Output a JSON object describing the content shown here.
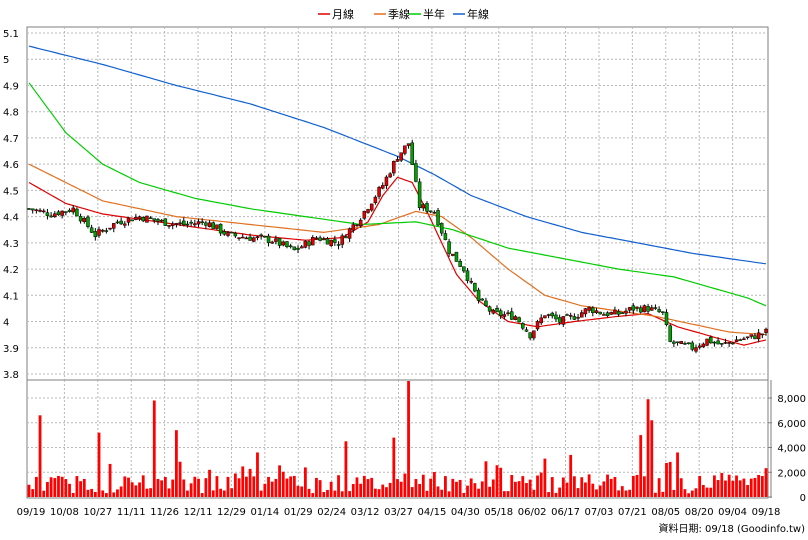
{
  "chart_data": {
    "type": "candlestick",
    "legend_position": "top-center",
    "grid": true,
    "legend": [
      {
        "name": "月線",
        "color": "#dd0000"
      },
      {
        "name": "季線",
        "color": "#e07020"
      },
      {
        "name": "半年",
        "color": "#00cc00"
      },
      {
        "name": "年線",
        "color": "#1060d0"
      }
    ],
    "price_axis": {
      "ylim": [
        3.8,
        5.1
      ],
      "ticks": [
        "5.1",
        "5",
        "4.9",
        "4.8",
        "4.7",
        "4.6",
        "4.5",
        "4.4",
        "4.3",
        "4.2",
        "4.1",
        "4",
        "3.9",
        "3.8"
      ]
    },
    "volume_axis": {
      "ylim": [
        0,
        8000
      ],
      "ticks": [
        "8,000",
        "6,000",
        "4,000",
        "2,000",
        "0"
      ]
    },
    "x_dates": [
      "09/19",
      "10/08",
      "10/27",
      "11/11",
      "11/26",
      "12/11",
      "12/29",
      "01/14",
      "01/29",
      "02/24",
      "03/12",
      "03/27",
      "04/15",
      "04/30",
      "05/18",
      "06/02",
      "06/17",
      "07/03",
      "07/21",
      "08/05",
      "08/20",
      "09/04",
      "09/18"
    ],
    "price_keypoints": [
      [
        0,
        4.43
      ],
      [
        6,
        4.41
      ],
      [
        12,
        4.43
      ],
      [
        18,
        4.33
      ],
      [
        24,
        4.38
      ],
      [
        30,
        4.4
      ],
      [
        36,
        4.38
      ],
      [
        42,
        4.37
      ],
      [
        48,
        4.38
      ],
      [
        54,
        4.33
      ],
      [
        60,
        4.32
      ],
      [
        66,
        4.31
      ],
      [
        72,
        4.27
      ],
      [
        78,
        4.32
      ],
      [
        84,
        4.3
      ],
      [
        90,
        4.4
      ],
      [
        96,
        4.52
      ],
      [
        100,
        4.63
      ],
      [
        103,
        4.68
      ],
      [
        106,
        4.44
      ],
      [
        110,
        4.42
      ],
      [
        114,
        4.27
      ],
      [
        118,
        4.2
      ],
      [
        122,
        4.08
      ],
      [
        126,
        4.03
      ],
      [
        132,
        4.02
      ],
      [
        136,
        3.95
      ],
      [
        140,
        4.03
      ],
      [
        144,
        4.0
      ],
      [
        148,
        4.02
      ],
      [
        152,
        4.05
      ],
      [
        156,
        4.03
      ],
      [
        160,
        4.03
      ],
      [
        164,
        4.05
      ],
      [
        168,
        4.05
      ],
      [
        172,
        4.03
      ],
      [
        174,
        3.92
      ],
      [
        180,
        3.9
      ],
      [
        184,
        3.93
      ],
      [
        188,
        3.91
      ],
      [
        192,
        3.93
      ],
      [
        196,
        3.94
      ],
      [
        200,
        3.96
      ]
    ],
    "ma_keypoints": {
      "月線": [
        [
          0,
          4.53
        ],
        [
          10,
          4.45
        ],
        [
          20,
          4.41
        ],
        [
          30,
          4.39
        ],
        [
          45,
          4.36
        ],
        [
          60,
          4.33
        ],
        [
          75,
          4.31
        ],
        [
          85,
          4.32
        ],
        [
          92,
          4.38
        ],
        [
          96,
          4.48
        ],
        [
          100,
          4.55
        ],
        [
          104,
          4.53
        ],
        [
          108,
          4.42
        ],
        [
          112,
          4.3
        ],
        [
          116,
          4.18
        ],
        [
          122,
          4.08
        ],
        [
          130,
          4.0
        ],
        [
          138,
          3.98
        ],
        [
          148,
          4.0
        ],
        [
          160,
          4.02
        ],
        [
          168,
          4.03
        ],
        [
          176,
          3.98
        ],
        [
          186,
          3.94
        ],
        [
          194,
          3.91
        ],
        [
          200,
          3.93
        ]
      ],
      "季線": [
        [
          0,
          4.6
        ],
        [
          20,
          4.46
        ],
        [
          40,
          4.4
        ],
        [
          60,
          4.37
        ],
        [
          80,
          4.34
        ],
        [
          95,
          4.37
        ],
        [
          105,
          4.42
        ],
        [
          112,
          4.4
        ],
        [
          120,
          4.32
        ],
        [
          130,
          4.2
        ],
        [
          140,
          4.1
        ],
        [
          150,
          4.06
        ],
        [
          160,
          4.04
        ],
        [
          170,
          4.02
        ],
        [
          180,
          3.99
        ],
        [
          190,
          3.96
        ],
        [
          200,
          3.95
        ]
      ],
      "半年": [
        [
          0,
          4.91
        ],
        [
          10,
          4.72
        ],
        [
          20,
          4.6
        ],
        [
          30,
          4.53
        ],
        [
          45,
          4.47
        ],
        [
          60,
          4.43
        ],
        [
          75,
          4.4
        ],
        [
          90,
          4.37
        ],
        [
          105,
          4.38
        ],
        [
          115,
          4.35
        ],
        [
          130,
          4.28
        ],
        [
          145,
          4.24
        ],
        [
          160,
          4.2
        ],
        [
          175,
          4.17
        ],
        [
          185,
          4.13
        ],
        [
          195,
          4.09
        ],
        [
          200,
          4.06
        ]
      ],
      "年線": [
        [
          0,
          5.05
        ],
        [
          20,
          4.98
        ],
        [
          40,
          4.9
        ],
        [
          60,
          4.83
        ],
        [
          80,
          4.74
        ],
        [
          100,
          4.63
        ],
        [
          110,
          4.56
        ],
        [
          120,
          4.48
        ],
        [
          135,
          4.4
        ],
        [
          150,
          4.34
        ],
        [
          165,
          4.3
        ],
        [
          180,
          4.26
        ],
        [
          190,
          4.24
        ],
        [
          200,
          4.22
        ]
      ]
    },
    "volume_spikes": [
      [
        3,
        6600
      ],
      [
        19,
        5200
      ],
      [
        34,
        7800
      ],
      [
        40,
        5400
      ],
      [
        56,
        1900
      ],
      [
        62,
        3600
      ],
      [
        86,
        4500
      ],
      [
        99,
        4800
      ],
      [
        103,
        9600
      ],
      [
        107,
        1800
      ],
      [
        120,
        1500
      ],
      [
        140,
        3100
      ],
      [
        147,
        3400
      ],
      [
        166,
        5000
      ],
      [
        168,
        7900
      ],
      [
        169,
        6200
      ],
      [
        176,
        3600
      ],
      [
        190,
        1800
      ]
    ],
    "footer": "資料日期: 09/18 (Goodinfo.tw)"
  }
}
